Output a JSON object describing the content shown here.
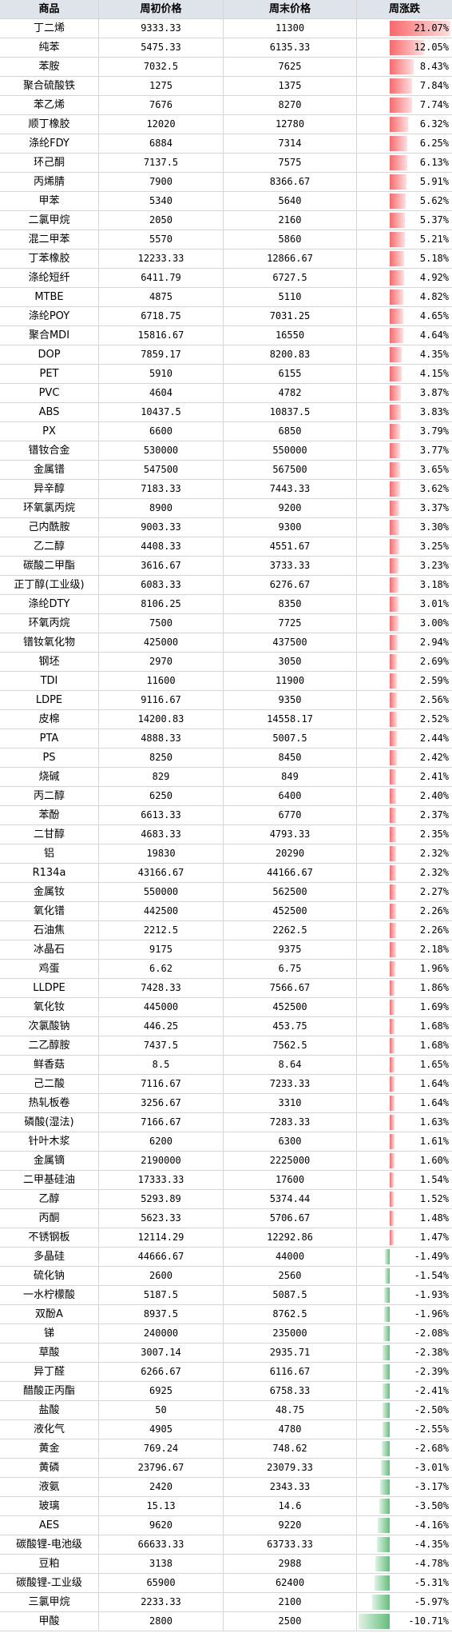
{
  "table": {
    "header": [
      "商品",
      "周初价格",
      "周末价格",
      "周涨跌"
    ],
    "rows": [
      [
        "丁二烯",
        9333.33,
        11300,
        {
          "value": 21.07,
          "label": "21.07%"
        }
      ],
      [
        "纯苯",
        5475.33,
        6135.33,
        {
          "value": 12.05,
          "label": "12.05%"
        }
      ],
      [
        "苯胺",
        7032.5,
        7625,
        {
          "value": 8.43,
          "label": "8.43%"
        }
      ],
      [
        "聚合硫酸铁",
        1275,
        1375,
        {
          "value": 7.84,
          "label": "7.84%"
        }
      ],
      [
        "苯乙烯",
        7676,
        8270,
        {
          "value": 7.74,
          "label": "7.74%"
        }
      ],
      [
        "顺丁橡胶",
        12020,
        12780,
        {
          "value": 6.32,
          "label": "6.32%"
        }
      ],
      [
        "涤纶FDY",
        6884,
        7314,
        {
          "value": 6.25,
          "label": "6.25%"
        }
      ],
      [
        "环己酮",
        7137.5,
        7575,
        {
          "value": 6.13,
          "label": "6.13%"
        }
      ],
      [
        "丙烯腈",
        7900,
        8366.67,
        {
          "value": 5.91,
          "label": "5.91%"
        }
      ],
      [
        "甲苯",
        5340,
        5640,
        {
          "value": 5.62,
          "label": "5.62%"
        }
      ],
      [
        "二氯甲烷",
        2050,
        2160,
        {
          "value": 5.37,
          "label": "5.37%"
        }
      ],
      [
        "混二甲苯",
        5570,
        5860,
        {
          "value": 5.21,
          "label": "5.21%"
        }
      ],
      [
        "丁苯橡胶",
        12233.33,
        12866.67,
        {
          "value": 5.18,
          "label": "5.18%"
        }
      ],
      [
        "涤纶短纤",
        6411.79,
        6727.5,
        {
          "value": 4.92,
          "label": "4.92%"
        }
      ],
      [
        "MTBE",
        4875,
        5110,
        {
          "value": 4.82,
          "label": "4.82%"
        }
      ],
      [
        "涤纶POY",
        6718.75,
        7031.25,
        {
          "value": 4.65,
          "label": "4.65%"
        }
      ],
      [
        "聚合MDI",
        15816.67,
        16550,
        {
          "value": 4.64,
          "label": "4.64%"
        }
      ],
      [
        "DOP",
        7859.17,
        8200.83,
        {
          "value": 4.35,
          "label": "4.35%"
        }
      ],
      [
        "PET",
        5910,
        6155,
        {
          "value": 4.15,
          "label": "4.15%"
        }
      ],
      [
        "PVC",
        4604,
        4782,
        {
          "value": 3.87,
          "label": "3.87%"
        }
      ],
      [
        "ABS",
        10437.5,
        10837.5,
        {
          "value": 3.83,
          "label": "3.83%"
        }
      ],
      [
        "PX",
        6600,
        6850,
        {
          "value": 3.79,
          "label": "3.79%"
        }
      ],
      [
        "镨钕合金",
        530000,
        550000,
        {
          "value": 3.77,
          "label": "3.77%"
        }
      ],
      [
        "金属镨",
        547500,
        567500,
        {
          "value": 3.65,
          "label": "3.65%"
        }
      ],
      [
        "异辛醇",
        7183.33,
        7443.33,
        {
          "value": 3.62,
          "label": "3.62%"
        }
      ],
      [
        "环氧氯丙烷",
        8900,
        9200,
        {
          "value": 3.37,
          "label": "3.37%"
        }
      ],
      [
        "己内酰胺",
        9003.33,
        9300,
        {
          "value": 3.3,
          "label": "3.30%"
        }
      ],
      [
        "乙二醇",
        4408.33,
        4551.67,
        {
          "value": 3.25,
          "label": "3.25%"
        }
      ],
      [
        "碳酸二甲酯",
        3616.67,
        3733.33,
        {
          "value": 3.23,
          "label": "3.23%"
        }
      ],
      [
        "正丁醇(工业级)",
        6083.33,
        6276.67,
        {
          "value": 3.18,
          "label": "3.18%"
        }
      ],
      [
        "涤纶DTY",
        8106.25,
        8350,
        {
          "value": 3.01,
          "label": "3.01%"
        }
      ],
      [
        "环氧丙烷",
        7500,
        7725,
        {
          "value": 3,
          "label": "3.00%"
        }
      ],
      [
        "镨钕氧化物",
        425000,
        437500,
        {
          "value": 2.94,
          "label": "2.94%"
        }
      ],
      [
        "钢坯",
        2970,
        3050,
        {
          "value": 2.69,
          "label": "2.69%"
        }
      ],
      [
        "TDI",
        11600,
        11900,
        {
          "value": 2.59,
          "label": "2.59%"
        }
      ],
      [
        "LDPE",
        9116.67,
        9350,
        {
          "value": 2.56,
          "label": "2.56%"
        }
      ],
      [
        "皮棉",
        14200.83,
        14558.17,
        {
          "value": 2.52,
          "label": "2.52%"
        }
      ],
      [
        "PTA",
        4888.33,
        5007.5,
        {
          "value": 2.44,
          "label": "2.44%"
        }
      ],
      [
        "PS",
        8250,
        8450,
        {
          "value": 2.42,
          "label": "2.42%"
        }
      ],
      [
        "烧碱",
        829,
        849,
        {
          "value": 2.41,
          "label": "2.41%"
        }
      ],
      [
        "丙二醇",
        6250,
        6400,
        {
          "value": 2.4,
          "label": "2.40%"
        }
      ],
      [
        "苯酚",
        6613.33,
        6770,
        {
          "value": 2.37,
          "label": "2.37%"
        }
      ],
      [
        "二甘醇",
        4683.33,
        4793.33,
        {
          "value": 2.35,
          "label": "2.35%"
        }
      ],
      [
        "铝",
        19830,
        20290,
        {
          "value": 2.32,
          "label": "2.32%"
        }
      ],
      [
        "R134a",
        43166.67,
        44166.67,
        {
          "value": 2.32,
          "label": "2.32%"
        }
      ],
      [
        "金属钕",
        550000,
        562500,
        {
          "value": 2.27,
          "label": "2.27%"
        }
      ],
      [
        "氧化镨",
        442500,
        452500,
        {
          "value": 2.26,
          "label": "2.26%"
        }
      ],
      [
        "石油焦",
        2212.5,
        2262.5,
        {
          "value": 2.26,
          "label": "2.26%"
        }
      ],
      [
        "冰晶石",
        9175,
        9375,
        {
          "value": 2.18,
          "label": "2.18%"
        }
      ],
      [
        "鸡蛋",
        6.62,
        6.75,
        {
          "value": 1.96,
          "label": "1.96%"
        }
      ],
      [
        "LLDPE",
        7428.33,
        7566.67,
        {
          "value": 1.86,
          "label": "1.86%"
        }
      ],
      [
        "氧化钕",
        445000,
        452500,
        {
          "value": 1.69,
          "label": "1.69%"
        }
      ],
      [
        "次氯酸钠",
        446.25,
        453.75,
        {
          "value": 1.68,
          "label": "1.68%"
        }
      ],
      [
        "二乙醇胺",
        7437.5,
        7562.5,
        {
          "value": 1.68,
          "label": "1.68%"
        }
      ],
      [
        "鲜香菇",
        8.5,
        8.64,
        {
          "value": 1.65,
          "label": "1.65%"
        }
      ],
      [
        "己二酸",
        7116.67,
        7233.33,
        {
          "value": 1.64,
          "label": "1.64%"
        }
      ],
      [
        "热轧板卷",
        3256.67,
        3310,
        {
          "value": 1.64,
          "label": "1.64%"
        }
      ],
      [
        "磷酸(湿法)",
        7166.67,
        7283.33,
        {
          "value": 1.63,
          "label": "1.63%"
        }
      ],
      [
        "针叶木浆",
        6200,
        6300,
        {
          "value": 1.61,
          "label": "1.61%"
        }
      ],
      [
        "金属镝",
        2190000,
        2225000,
        {
          "value": 1.6,
          "label": "1.60%"
        }
      ],
      [
        "二甲基硅油",
        17333.33,
        17600,
        {
          "value": 1.54,
          "label": "1.54%"
        }
      ],
      [
        "乙醇",
        5293.89,
        5374.44,
        {
          "value": 1.52,
          "label": "1.52%"
        }
      ],
      [
        "丙酮",
        5623.33,
        5706.67,
        {
          "value": 1.48,
          "label": "1.48%"
        }
      ],
      [
        "不锈钢板",
        12114.29,
        12292.86,
        {
          "value": 1.47,
          "label": "1.47%"
        }
      ],
      [
        "多晶硅",
        44666.67,
        44000,
        {
          "value": -1.49,
          "label": "-1.49%"
        }
      ],
      [
        "硫化钠",
        2600,
        2560,
        {
          "value": -1.54,
          "label": "-1.54%"
        }
      ],
      [
        "一水柠檬酸",
        5187.5,
        5087.5,
        {
          "value": -1.93,
          "label": "-1.93%"
        }
      ],
      [
        "双酚A",
        8937.5,
        8762.5,
        {
          "value": -1.96,
          "label": "-1.96%"
        }
      ],
      [
        "锑",
        240000,
        235000,
        {
          "value": -2.08,
          "label": "-2.08%"
        }
      ],
      [
        "草酸",
        3007.14,
        2935.71,
        {
          "value": -2.38,
          "label": "-2.38%"
        }
      ],
      [
        "异丁醛",
        6266.67,
        6116.67,
        {
          "value": -2.39,
          "label": "-2.39%"
        }
      ],
      [
        "醋酸正丙酯",
        6925,
        6758.33,
        {
          "value": -2.41,
          "label": "-2.41%"
        }
      ],
      [
        "盐酸",
        50,
        48.75,
        {
          "value": -2.5,
          "label": "-2.50%"
        }
      ],
      [
        "液化气",
        4905,
        4780,
        {
          "value": -2.55,
          "label": "-2.55%"
        }
      ],
      [
        "黄金",
        769.24,
        748.62,
        {
          "value": -2.68,
          "label": "-2.68%"
        }
      ],
      [
        "黄磷",
        23796.67,
        23079.33,
        {
          "value": -3.01,
          "label": "-3.01%"
        }
      ],
      [
        "液氨",
        2420,
        2343.33,
        {
          "value": -3.17,
          "label": "-3.17%"
        }
      ],
      [
        "玻璃",
        15.13,
        14.6,
        {
          "value": -3.5,
          "label": "-3.50%"
        }
      ],
      [
        "AES",
        9620,
        9220,
        {
          "value": -4.16,
          "label": "-4.16%"
        }
      ],
      [
        "碳酸锂-电池级",
        66633.33,
        63733.33,
        {
          "value": -4.35,
          "label": "-4.35%"
        }
      ],
      [
        "豆粕",
        3138,
        2988,
        {
          "value": -4.78,
          "label": "-4.78%"
        }
      ],
      [
        "碳酸锂-工业级",
        65900,
        62400,
        {
          "value": -5.31,
          "label": "-5.31%"
        }
      ],
      [
        "三氯甲烷",
        2233.33,
        2100,
        {
          "value": -5.97,
          "label": "-5.97%"
        }
      ],
      [
        "甲酸",
        2800,
        2500,
        {
          "value": -10.71,
          "label": "-10.71%"
        }
      ]
    ]
  }
}
